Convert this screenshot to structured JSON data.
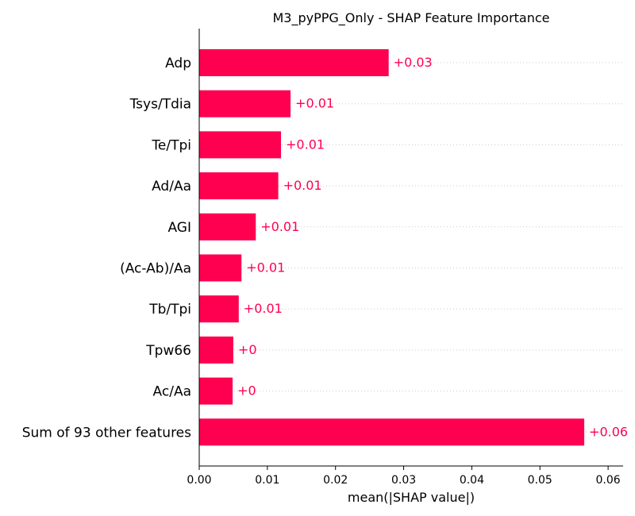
{
  "chart_data": {
    "type": "bar",
    "orientation": "horizontal",
    "title": "M3_pyPPG_Only - SHAP Feature Importance",
    "xlabel": "mean(|SHAP value|)",
    "ylabel": "",
    "categories": [
      "Adp",
      "Tsys/Tdia",
      "Te/Tpi",
      "Ad/Aa",
      "AGI",
      "(Ac-Ab)/Aa",
      "Tb/Tpi",
      "Tpw66",
      "Ac/Aa",
      "Sum of 93 other features"
    ],
    "values": [
      0.0278,
      0.0134,
      0.012,
      0.0116,
      0.0083,
      0.0062,
      0.0058,
      0.005,
      0.0049,
      0.0565
    ],
    "value_labels": [
      "+0.03",
      "+0.01",
      "+0.01",
      "+0.01",
      "+0.01",
      "+0.01",
      "+0.01",
      "+0",
      "+0",
      "+0.06"
    ],
    "xlim": [
      0,
      0.0622
    ],
    "xticks": [
      0.0,
      0.01,
      0.02,
      0.03,
      0.04,
      0.05,
      0.06
    ],
    "xtick_labels": [
      "0.00",
      "0.01",
      "0.02",
      "0.03",
      "0.04",
      "0.05",
      "0.06"
    ],
    "grid": "horizontal-dotted",
    "colors": {
      "bar": "#ff0051",
      "label": "#ff0051"
    }
  }
}
